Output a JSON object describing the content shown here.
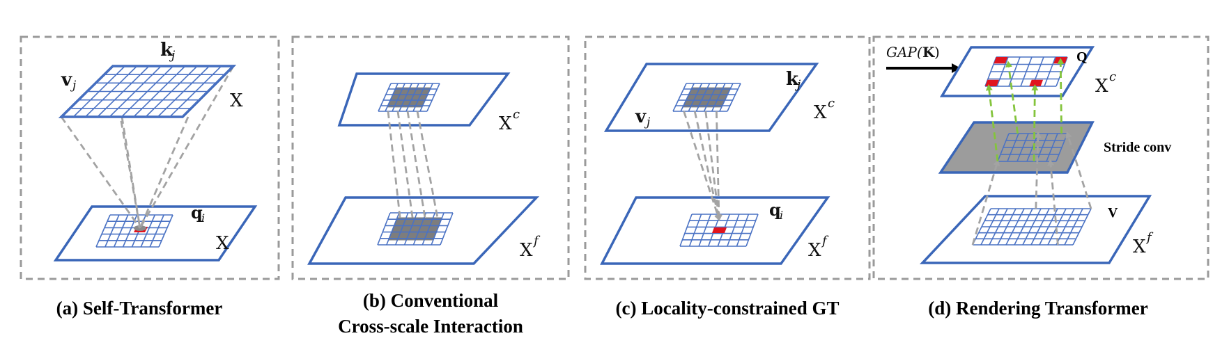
{
  "panels": [
    {
      "caption": "(a) Self-Transformer",
      "labels": {
        "k": "k",
        "k_sub": "j",
        "v": "v",
        "v_sub": "j",
        "x_top": "X",
        "q": "q",
        "q_sub": "i",
        "x_bottom": "X"
      }
    },
    {
      "caption_line1": "(b) Conventional",
      "caption_line2": "Cross-scale Interaction",
      "labels": {
        "x_top": "X",
        "x_top_sup": "c",
        "x_bottom": "X",
        "x_bottom_sup": "f"
      }
    },
    {
      "caption": "(c) Locality-constrained GT",
      "labels": {
        "k": "k",
        "k_sub": "j",
        "v": "v",
        "v_sub": "j",
        "x_top": "X",
        "x_top_sup": "c",
        "q": "q",
        "q_sub": "i",
        "x_bottom": "X",
        "x_bottom_sup": "f"
      }
    },
    {
      "caption": "(d) Rendering  Transformer",
      "labels": {
        "gap": "GAP(",
        "gap_k": "K",
        "gap_close": ")",
        "q": "Q",
        "x_top": "X",
        "x_top_sup": "c",
        "stride": "Stride conv",
        "v": "V",
        "x_bottom": "X",
        "x_bottom_sup": "f"
      }
    }
  ],
  "colors": {
    "plane_border": "#3a66b8",
    "grid": "#4a72c4",
    "highlight_red": "#e0141e",
    "highlight_gray": "#7d7d7d",
    "projection_gray": "#a3a3a3",
    "projection_green": "#84c43c",
    "box_border": "#9a9a9a"
  },
  "icons": [
    "arrow-right-icon"
  ]
}
